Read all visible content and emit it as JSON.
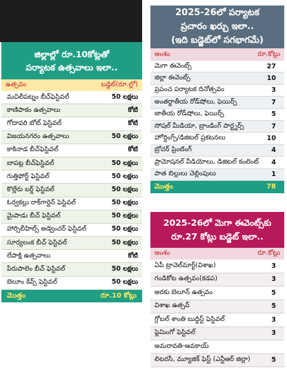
{
  "left": {
    "title_line1": "జిల్లాల్లో రూ.10కోట్లతో",
    "title_line2": "పర్యాటక ఉత్సవాలు ఇలా..",
    "col_event": "ఉత్సవం",
    "col_budget": "బడ్జెట్(రూ.ల్లో)",
    "rows": [
      {
        "name": "మచిలీపట్నం బీచ్‌ఫెస్టివల్",
        "value": "50 లక్షలు"
      },
      {
        "name": "కాణిపాకం ఉత్సవాలు",
        "value": "కోటి"
      },
      {
        "name": "గోదావరి బోట్ ఫెస్టివల్",
        "value": "కోటి"
      },
      {
        "name": "విజయనగరం ఉత్సవాలు",
        "value": "50 లక్షలు"
      },
      {
        "name": "కాకినాడ బీచ్‌ఫెస్టివల్",
        "value": "కోటి"
      },
      {
        "name": "బాపట్ల బీచ్‌ఫెస్టివల్",
        "value": "50 లక్షలు"
      },
      {
        "name": "గుత్తిఫోర్ట్ ఫెస్టివల్",
        "value": "50 లక్షలు"
      },
      {
        "name": "కొల్లేరు బర్డ్ ఫెస్టివల్",
        "value": "50 లక్షలు"
      },
      {
        "name": "ఓర్వకల్లు రాక్‌గార్డెన్ ఫెస్టివల్",
        "value": "50 లక్షలు"
      },
      {
        "name": "మైపాడు బీచ్ ఫెస్టివల్",
        "value": "50 లక్షలు"
      },
      {
        "name": "హార్సిలీహిల్స్ అడ్వెంచర్ ఫెస్టివల్",
        "value": "50 లక్షలు"
      },
      {
        "name": "సూర్యలంక బీచ్ ఫెస్టివల్",
        "value": "50 లక్షలు"
      },
      {
        "name": "లేపాక్షి ఉత్సవాలు",
        "value": "కోటి"
      },
      {
        "name": "పేరుపాలెం బీచ్ ఫెస్టివల్",
        "value": "50 లక్షలు"
      },
      {
        "name": "బెలూం కేవ్స్ ఫెస్టివల్",
        "value": "50 లక్షలు"
      }
    ],
    "total_label": "మొత్తం",
    "total_value": "రూ.10 కోట్లు"
  },
  "right_top": {
    "title_line1": "2025-26లో పర్యాటక",
    "title_line2": "ప్రచారం ఖర్చు ఇలా..",
    "title_line3": "(ఇది బడ్జెట్‌లో సగభాగమే)",
    "col_item": "అంశం",
    "col_value": "రూ.కోట్లు",
    "rows": [
      {
        "name": "మెగా ఈవెంట్స్",
        "value": "27"
      },
      {
        "name": "జిల్లా ఈవెంట్స్",
        "value": "10"
      },
      {
        "name": "ప్రపంచ పర్యాటక దినోత్సవం",
        "value": "3"
      },
      {
        "name": "అంతర్జాతీయ రోడ్‌షోలు, ఫెయిర్స్",
        "value": "7"
      },
      {
        "name": "జాతీయ రోడ్‌షోలు, ఫెయిర్స్",
        "value": "5"
      },
      {
        "name": "సోషల్ మీడియా, బ్రాండింగ్ పార్ట్నర్స్",
        "value": "7"
      },
      {
        "name": "హోర్డింగ్స్/డిజిటల్ ప్రకటనలు",
        "value": "10"
      },
      {
        "name": "బ్రోచర్ ప్రింటింగ్",
        "value": "4"
      },
      {
        "name": "ప్రామోషనల్ వీడియోలు, డిజిటల్ కంటెంట్",
        "value": "4"
      },
      {
        "name": "పాత బిల్లులు చెల్లింపులు",
        "value": "1"
      }
    ],
    "total_label": "మొత్తం",
    "total_value": "78"
  },
  "right_bottom": {
    "title_line1": "2025-26లో మెగా ఈవెంట్స్‌కు",
    "title_line2": "రూ.27 కోట్లు బడ్జెట్ ఇలా..",
    "col_item": "అంశం",
    "col_value": "రూ.కోట్లు",
    "rows": [
      {
        "name": "ఏపీ ట్రావెల్‌మార్ట్(విశాఖ)",
        "value": "3"
      },
      {
        "name": "గండికోట ఉత్సవం(కడప)",
        "value": "3"
      },
      {
        "name": "అరకు బెలూన్ ఉత్సవం",
        "value": "5"
      },
      {
        "name": "విశాఖ ఉత్సవ్",
        "value": "5"
      },
      {
        "name": "గ్లోబల్ శాంతి బుద్ధిస్ట్ ఫెస్టివల్",
        "value": "3"
      },
      {
        "name": "ఫ్లెమింగో ఫెస్టివల్",
        "value": "3"
      },
      {
        "name": "అమరావతి-ఆవకాయ్",
        "value": ""
      },
      {
        "name": "లిటరసీ, మ్యూజిక్ ఫెస్ట్ (ఎన్టీఆర్ జిల్లా)",
        "value": "5"
      }
    ]
  }
}
